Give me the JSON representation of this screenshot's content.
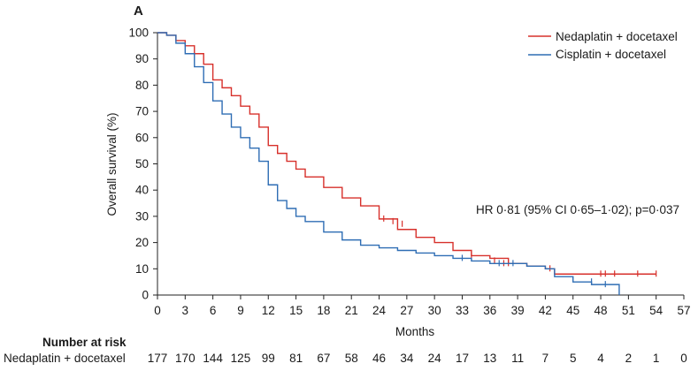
{
  "chart_data": {
    "type": "line",
    "panel_label": "A",
    "xlabel": "Months",
    "ylabel": "Overall survival (%)",
    "xlim": [
      0,
      57
    ],
    "ylim": [
      0,
      100
    ],
    "x_ticks": [
      0,
      3,
      6,
      9,
      12,
      15,
      18,
      21,
      24,
      27,
      30,
      33,
      36,
      39,
      42,
      45,
      48,
      51,
      54,
      57
    ],
    "y_ticks": [
      0,
      10,
      20,
      30,
      40,
      50,
      60,
      70,
      80,
      90,
      100
    ],
    "grid": false,
    "legend_position": "top-right",
    "annotation": "HR 0·81 (95% CI 0·65–1·02); p=0·037",
    "series": [
      {
        "name": "Nedaplatin + docetaxel",
        "color": "#d7302b",
        "x": [
          0,
          1,
          2,
          3,
          4,
          5,
          6,
          7,
          8,
          9,
          10,
          11,
          12,
          13,
          14,
          15,
          16,
          18,
          20,
          22,
          24,
          26,
          28,
          30,
          32,
          34,
          36,
          38,
          40,
          42,
          43,
          46,
          50,
          54
        ],
        "y": [
          100,
          99,
          97,
          95,
          92,
          88,
          82,
          79,
          76,
          72,
          69,
          64,
          57,
          54,
          51,
          48,
          45,
          41,
          37,
          34,
          29,
          25,
          22,
          20,
          17,
          15,
          14,
          12,
          11,
          10,
          8,
          8,
          8,
          8
        ],
        "censor_x": [
          24.5,
          25.5,
          26.5,
          34,
          36.5,
          37.5,
          38,
          42.5,
          48,
          48.5,
          49.5,
          52,
          54
        ],
        "censor_y": [
          29,
          28,
          27,
          15,
          13,
          12,
          12,
          10,
          8,
          8,
          8,
          8,
          8
        ]
      },
      {
        "name": "Cisplatin + docetaxel",
        "color": "#2e6db4",
        "x": [
          0,
          1,
          2,
          3,
          4,
          5,
          6,
          7,
          8,
          9,
          10,
          11,
          12,
          13,
          14,
          15,
          16,
          18,
          20,
          22,
          24,
          26,
          28,
          30,
          32,
          34,
          36,
          38,
          40,
          42,
          43,
          45,
          46,
          47,
          49,
          50
        ],
        "y": [
          100,
          99,
          96,
          92,
          87,
          81,
          74,
          69,
          64,
          60,
          56,
          51,
          42,
          36,
          33,
          30,
          28,
          24,
          21,
          19,
          18,
          17,
          16,
          15,
          14,
          13,
          12,
          12,
          11,
          10,
          7,
          5,
          5,
          4,
          4,
          0
        ],
        "censor_x": [
          33,
          37,
          38.5,
          47,
          48.5
        ],
        "censor_y": [
          14,
          12,
          12,
          5,
          4
        ]
      }
    ]
  },
  "risk_table": {
    "title": "Number at risk",
    "rows": [
      {
        "label": "Nedaplatin + docetaxel",
        "values": [
          "177",
          "170",
          "144",
          "125",
          "99",
          "81",
          "67",
          "58",
          "46",
          "34",
          "24",
          "17",
          "13",
          "11",
          "7",
          "5",
          "4",
          "2",
          "1",
          "0"
        ]
      }
    ]
  }
}
